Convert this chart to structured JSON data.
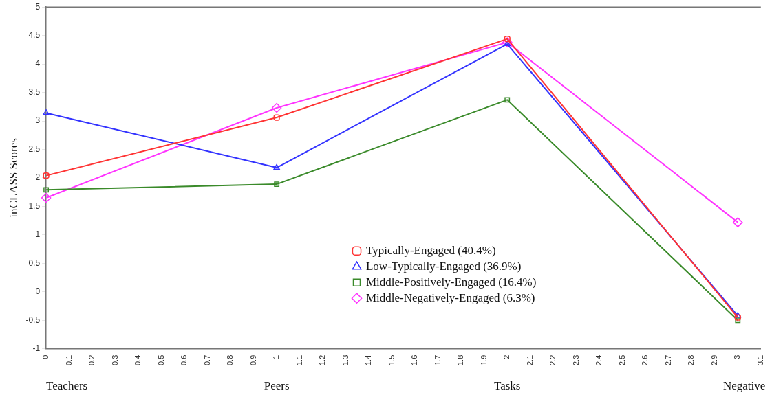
{
  "chart_data": {
    "type": "line",
    "ylabel": "inCLASS Scores",
    "x": [
      0,
      1,
      2,
      3
    ],
    "xlim": [
      0,
      3.1
    ],
    "xticks": [
      0,
      0.1,
      0.2,
      0.3,
      0.4,
      0.5,
      0.6,
      0.7,
      0.8,
      0.9,
      1,
      1.1,
      1.2,
      1.3,
      1.4,
      1.5,
      1.6,
      1.7,
      1.8,
      1.9,
      2,
      2.1,
      2.2,
      2.3,
      2.4,
      2.5,
      2.6,
      2.7,
      2.8,
      2.9,
      3,
      3.1
    ],
    "ylim": [
      -1,
      5
    ],
    "yticks": [
      -1,
      -0.5,
      0,
      0.5,
      1,
      1.5,
      2,
      2.5,
      3,
      3.5,
      4,
      4.5,
      5
    ],
    "grid": false,
    "legend": "bottom",
    "line_style": "solid",
    "series": [
      {
        "name": "Typically-Engaged (40.4%)",
        "color": "#ff3333",
        "marker": "circle",
        "values": [
          2.04,
          3.06,
          4.44,
          -0.45
        ]
      },
      {
        "name": "Low-Typically-Engaged (36.9%)",
        "color": "#3333ff",
        "marker": "triangle",
        "values": [
          3.14,
          2.18,
          4.35,
          -0.42
        ]
      },
      {
        "name": "Middle-Positively-Engaged (16.4%)",
        "color": "#3a8a2a",
        "marker": "square",
        "values": [
          1.79,
          1.89,
          3.37,
          -0.5
        ]
      },
      {
        "name": "Middle-Negatively-Engaged (6.3%)",
        "color": "#ff33ff",
        "marker": "diamond",
        "values": [
          1.65,
          3.23,
          4.38,
          1.22
        ]
      }
    ],
    "annotations": [
      "Teachers",
      "Peers",
      "Tasks",
      "Negative"
    ]
  }
}
